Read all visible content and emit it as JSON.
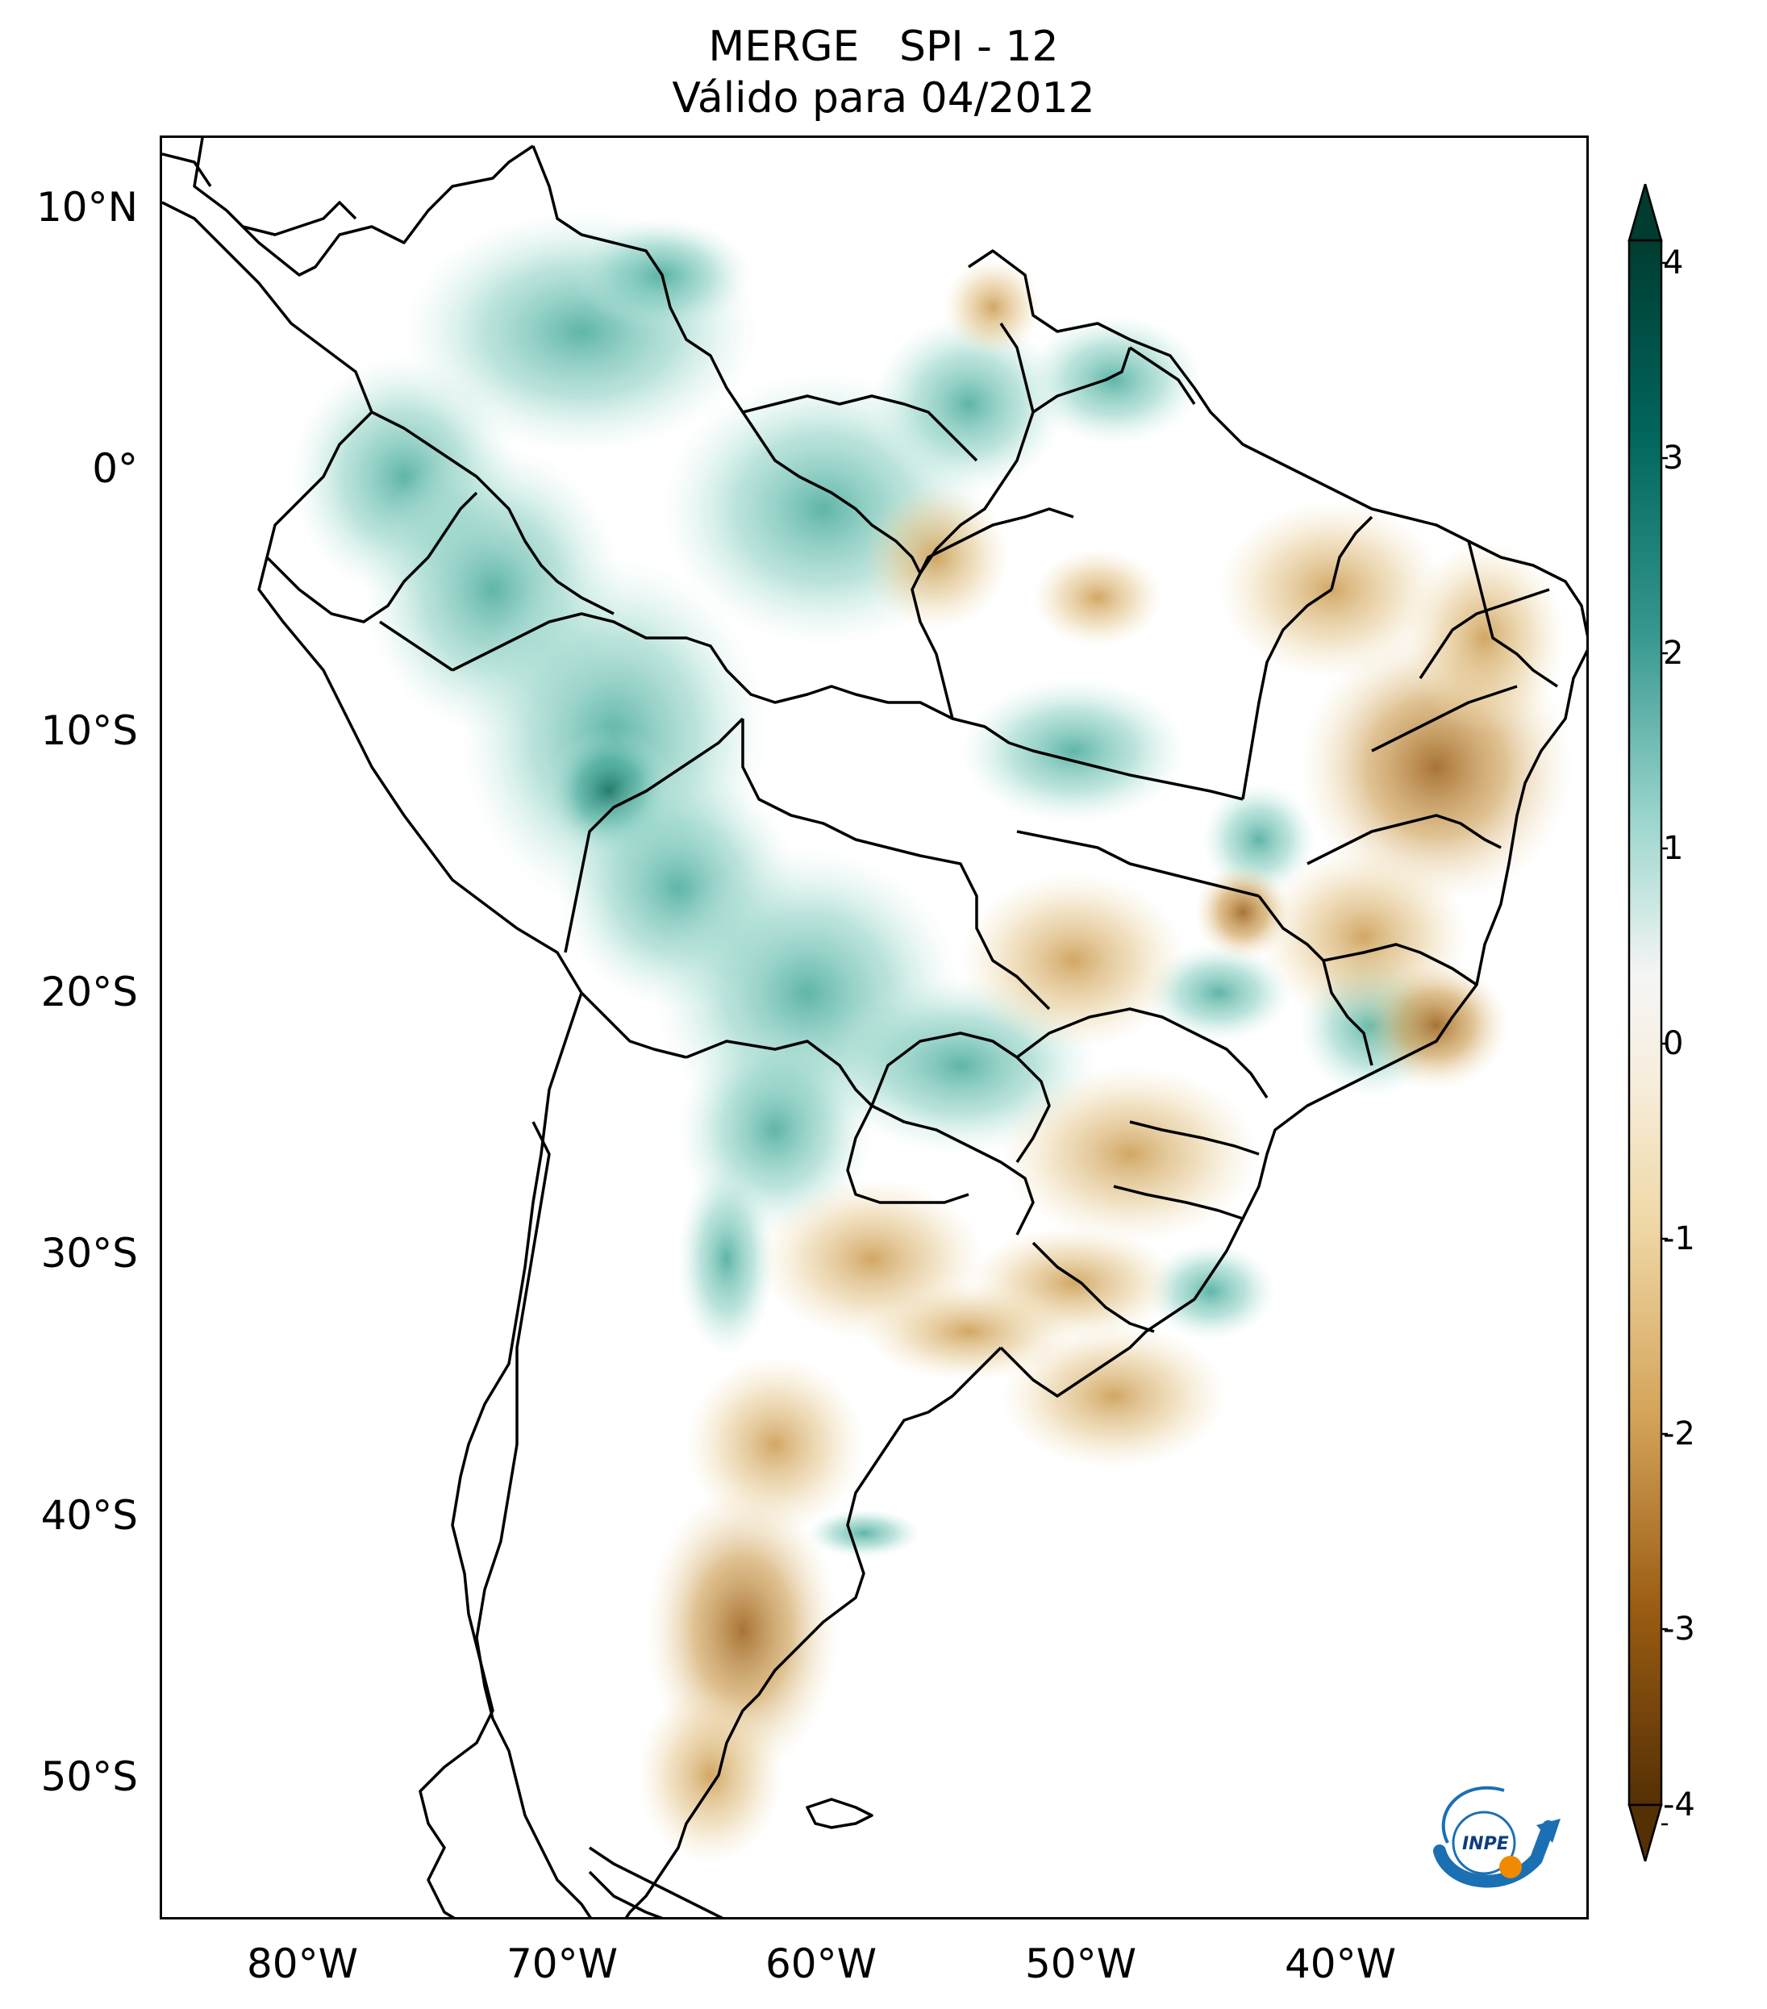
{
  "title": {
    "line1": "MERGE   SPI - 12",
    "line2": "Válido para 04/2012"
  },
  "map": {
    "lat_ticks": [
      "10°N",
      "0°",
      "10°S",
      "20°S",
      "30°S",
      "40°S",
      "50°S"
    ],
    "lon_ticks": [
      "80°W",
      "70°W",
      "60°W",
      "50°W",
      "40°W"
    ]
  },
  "colorbar": {
    "ticks": [
      "4",
      "3",
      "2",
      "1",
      "0",
      "-1",
      "-2",
      "-3",
      "-4"
    ],
    "range": [
      -4,
      4
    ],
    "colors": {
      "wet_max": "#013c30",
      "wet_mid": "#3aa494",
      "wet_light": "#c6ebe3",
      "neutral": "#ffffff",
      "dry_light": "#f2dfb4",
      "dry_mid": "#c7923f",
      "dry_max": "#543005"
    }
  },
  "logo": {
    "text": "INPE"
  }
}
